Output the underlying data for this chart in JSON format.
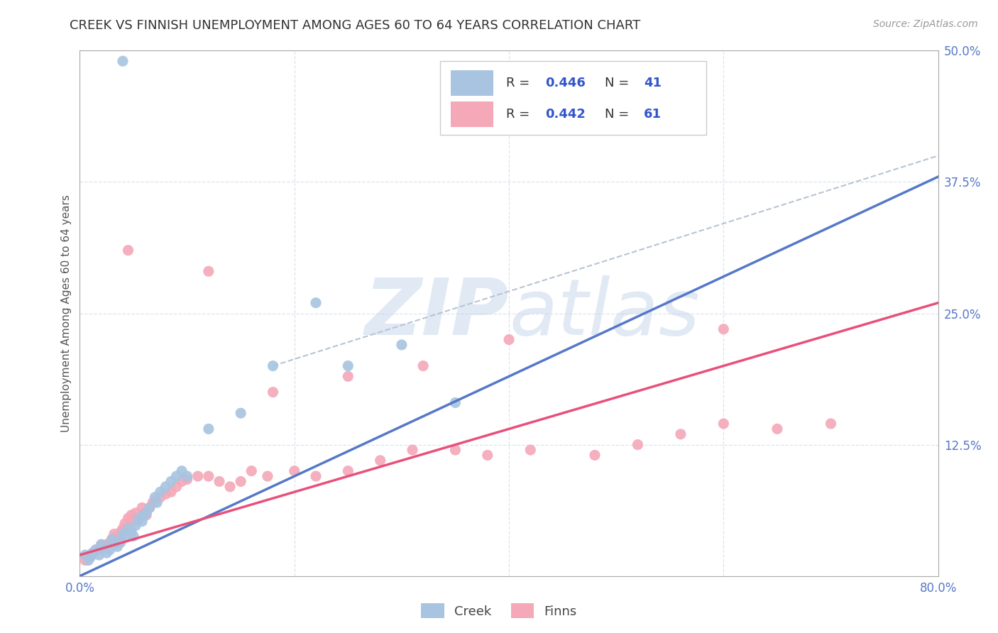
{
  "title": "CREEK VS FINNISH UNEMPLOYMENT AMONG AGES 60 TO 64 YEARS CORRELATION CHART",
  "source": "Source: ZipAtlas.com",
  "ylabel": "Unemployment Among Ages 60 to 64 years",
  "xlim": [
    0.0,
    0.8
  ],
  "ylim": [
    0.0,
    0.5
  ],
  "creek_color": "#a8c4e0",
  "finns_color": "#f4a8b8",
  "creek_line_color": "#5578c8",
  "finns_line_color": "#e8507a",
  "dashed_line_color": "#b8c4d4",
  "creek_R": 0.446,
  "creek_N": 41,
  "finns_R": 0.442,
  "finns_N": 61,
  "background_color": "#ffffff",
  "grid_color": "#dde3ee",
  "watermark_color": "#ccd8e8",
  "tick_color": "#5578c8",
  "title_color": "#333333",
  "source_color": "#999999",
  "ylabel_color": "#555555",
  "legend_text_color": "#333333",
  "legend_value_color": "#3355cc",
  "creek_scatter_x": [
    0.005,
    0.008,
    0.01,
    0.012,
    0.015,
    0.018,
    0.02,
    0.022,
    0.025,
    0.028,
    0.03,
    0.032,
    0.035,
    0.038,
    0.04,
    0.042,
    0.045,
    0.048,
    0.05,
    0.052,
    0.055,
    0.058,
    0.06,
    0.062,
    0.065,
    0.07,
    0.072,
    0.075,
    0.08,
    0.085,
    0.09,
    0.095,
    0.1,
    0.12,
    0.15,
    0.18,
    0.25,
    0.3,
    0.35,
    0.04,
    0.22
  ],
  "creek_scatter_y": [
    0.02,
    0.015,
    0.018,
    0.022,
    0.025,
    0.02,
    0.03,
    0.028,
    0.022,
    0.025,
    0.035,
    0.03,
    0.028,
    0.032,
    0.04,
    0.038,
    0.045,
    0.042,
    0.038,
    0.048,
    0.055,
    0.052,
    0.058,
    0.06,
    0.065,
    0.075,
    0.07,
    0.08,
    0.085,
    0.09,
    0.095,
    0.1,
    0.095,
    0.14,
    0.155,
    0.2,
    0.2,
    0.22,
    0.165,
    0.49,
    0.26
  ],
  "finns_scatter_x": [
    0.005,
    0.008,
    0.01,
    0.012,
    0.015,
    0.018,
    0.02,
    0.022,
    0.025,
    0.028,
    0.03,
    0.032,
    0.035,
    0.038,
    0.04,
    0.042,
    0.045,
    0.048,
    0.05,
    0.052,
    0.055,
    0.058,
    0.06,
    0.062,
    0.065,
    0.068,
    0.07,
    0.075,
    0.08,
    0.085,
    0.09,
    0.095,
    0.1,
    0.11,
    0.12,
    0.13,
    0.14,
    0.15,
    0.16,
    0.175,
    0.2,
    0.22,
    0.25,
    0.28,
    0.31,
    0.35,
    0.38,
    0.42,
    0.48,
    0.52,
    0.56,
    0.6,
    0.65,
    0.7,
    0.12,
    0.18,
    0.25,
    0.32,
    0.4,
    0.6,
    0.045
  ],
  "finns_scatter_y": [
    0.015,
    0.018,
    0.02,
    0.022,
    0.025,
    0.025,
    0.03,
    0.028,
    0.03,
    0.032,
    0.035,
    0.04,
    0.038,
    0.042,
    0.045,
    0.05,
    0.055,
    0.058,
    0.052,
    0.06,
    0.055,
    0.065,
    0.06,
    0.058,
    0.065,
    0.07,
    0.072,
    0.075,
    0.078,
    0.08,
    0.085,
    0.09,
    0.092,
    0.095,
    0.095,
    0.09,
    0.085,
    0.09,
    0.1,
    0.095,
    0.1,
    0.095,
    0.1,
    0.11,
    0.12,
    0.12,
    0.115,
    0.12,
    0.115,
    0.125,
    0.135,
    0.145,
    0.14,
    0.145,
    0.29,
    0.175,
    0.19,
    0.2,
    0.225,
    0.235,
    0.31
  ],
  "creek_line_x": [
    0.0,
    0.8
  ],
  "creek_line_y": [
    0.0,
    0.38
  ],
  "finns_line_x": [
    0.0,
    0.8
  ],
  "finns_line_y": [
    0.02,
    0.26
  ],
  "dashed_line_x": [
    0.18,
    0.8
  ],
  "dashed_line_y": [
    0.2,
    0.4
  ],
  "title_fontsize": 13,
  "axis_label_fontsize": 11,
  "tick_fontsize": 12,
  "legend_fontsize": 13,
  "source_fontsize": 10,
  "scatter_size": 120
}
